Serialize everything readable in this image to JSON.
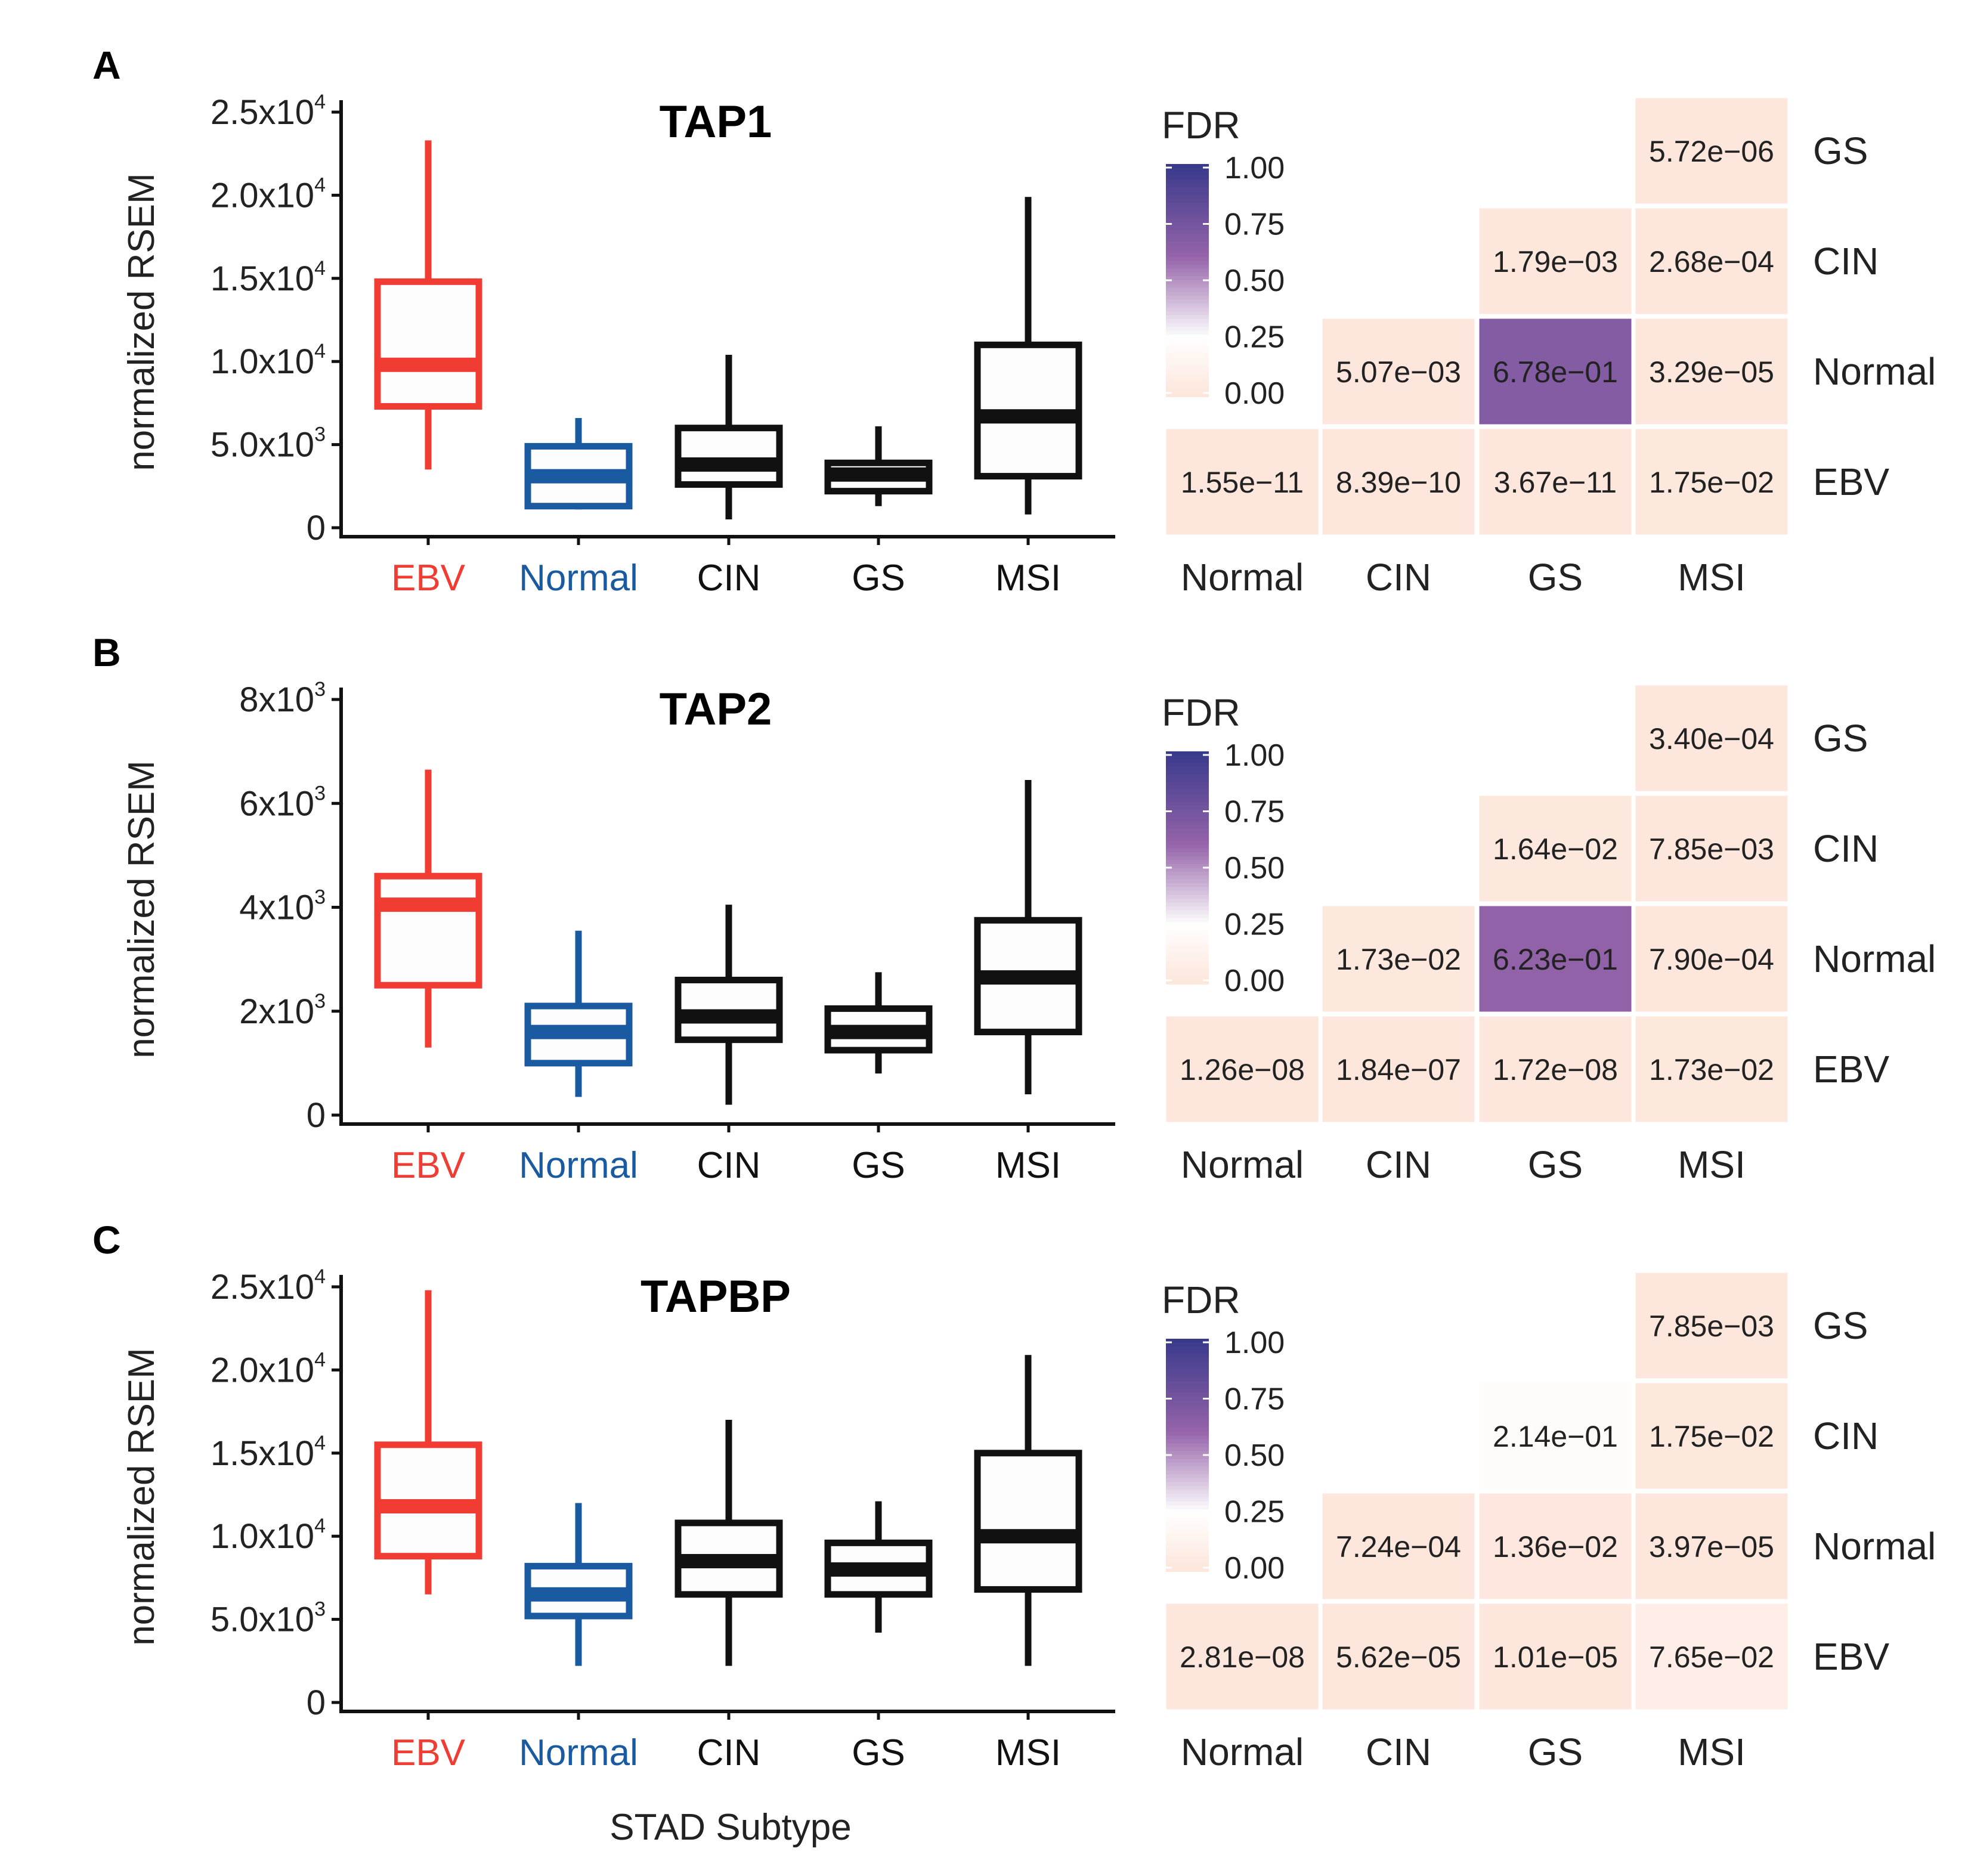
{
  "figure": {
    "xlabel": "STAD Subtype",
    "legend_title": "FDR",
    "legend_ticks": [
      "1.00",
      "0.75",
      "0.50",
      "0.25",
      "0.00"
    ],
    "colors": {
      "EBV": "#f03c32",
      "Normal": "#1a5aa0",
      "CIN": "#111111",
      "GS": "#111111",
      "MSI": "#111111",
      "heat_low": "#fde6dc",
      "heat_mid": "#ffffff",
      "heat_high": "#3a3a8c"
    }
  },
  "chart_data": [
    {
      "panel": "A",
      "type": "box",
      "title": "TAP1",
      "ylabel": "normalized RSEM",
      "ylim": [
        0,
        25000
      ],
      "yticks": [
        {
          "value": 0,
          "base": "0",
          "exp": ""
        },
        {
          "value": 5000,
          "base": "5.0x10",
          "exp": "3"
        },
        {
          "value": 10000,
          "base": "1.0x10",
          "exp": "4"
        },
        {
          "value": 15000,
          "base": "1.5x10",
          "exp": "4"
        },
        {
          "value": 20000,
          "base": "2.0x10",
          "exp": "4"
        },
        {
          "value": 25000,
          "base": "2.5x10",
          "exp": "4"
        }
      ],
      "categories": [
        "EBV",
        "Normal",
        "CIN",
        "GS",
        "MSI"
      ],
      "boxes": [
        {
          "name": "EBV",
          "whisker_low": 3500,
          "q1": 7300,
          "median": 9800,
          "q3": 14800,
          "whisker_high": 23300
        },
        {
          "name": "Normal",
          "whisker_low": 1100,
          "q1": 1300,
          "median": 3100,
          "q3": 4900,
          "whisker_high": 6600
        },
        {
          "name": "CIN",
          "whisker_low": 500,
          "q1": 2600,
          "median": 3800,
          "q3": 6000,
          "whisker_high": 10400
        },
        {
          "name": "GS",
          "whisker_low": 1300,
          "q1": 2200,
          "median": 3200,
          "q3": 3900,
          "whisker_high": 6100
        },
        {
          "name": "MSI",
          "whisker_low": 800,
          "q1": 3100,
          "median": 6700,
          "q3": 11000,
          "whisker_high": 19900
        }
      ],
      "heatmap": {
        "columns": [
          "Normal",
          "CIN",
          "GS",
          "MSI"
        ],
        "rows": [
          "GS",
          "CIN",
          "Normal",
          "EBV"
        ],
        "cells": [
          {
            "row": "GS",
            "col": "MSI",
            "label": "5.72e−06",
            "value": 5.7e-06
          },
          {
            "row": "CIN",
            "col": "GS",
            "label": "1.79e−03",
            "value": 0.0018
          },
          {
            "row": "CIN",
            "col": "MSI",
            "label": "2.68e−04",
            "value": 0.00027
          },
          {
            "row": "Normal",
            "col": "CIN",
            "label": "5.07e−03",
            "value": 0.0051
          },
          {
            "row": "Normal",
            "col": "GS",
            "label": "6.78e−01",
            "value": 0.678
          },
          {
            "row": "Normal",
            "col": "MSI",
            "label": "3.29e−05",
            "value": 3.3e-05
          },
          {
            "row": "EBV",
            "col": "Normal",
            "label": "1.55e−11",
            "value": 1.55e-11
          },
          {
            "row": "EBV",
            "col": "CIN",
            "label": "8.39e−10",
            "value": 8.39e-10
          },
          {
            "row": "EBV",
            "col": "GS",
            "label": "3.67e−11",
            "value": 3.67e-11
          },
          {
            "row": "EBV",
            "col": "MSI",
            "label": "1.75e−02",
            "value": 0.0175
          }
        ]
      }
    },
    {
      "panel": "B",
      "type": "box",
      "title": "TAP2",
      "ylabel": "normalized RSEM",
      "ylim": [
        0,
        8000
      ],
      "yticks": [
        {
          "value": 0,
          "base": "0",
          "exp": ""
        },
        {
          "value": 2000,
          "base": "2x10",
          "exp": "3"
        },
        {
          "value": 4000,
          "base": "4x10",
          "exp": "3"
        },
        {
          "value": 6000,
          "base": "6x10",
          "exp": "3"
        },
        {
          "value": 8000,
          "base": "8x10",
          "exp": "3"
        }
      ],
      "categories": [
        "EBV",
        "Normal",
        "CIN",
        "GS",
        "MSI"
      ],
      "boxes": [
        {
          "name": "EBV",
          "whisker_low": 1300,
          "q1": 2500,
          "median": 4050,
          "q3": 4600,
          "whisker_high": 6650
        },
        {
          "name": "Normal",
          "whisker_low": 350,
          "q1": 1000,
          "median": 1600,
          "q3": 2100,
          "whisker_high": 3550
        },
        {
          "name": "CIN",
          "whisker_low": 200,
          "q1": 1450,
          "median": 1900,
          "q3": 2600,
          "whisker_high": 4050
        },
        {
          "name": "GS",
          "whisker_low": 800,
          "q1": 1250,
          "median": 1600,
          "q3": 2050,
          "whisker_high": 2750
        },
        {
          "name": "MSI",
          "whisker_low": 400,
          "q1": 1600,
          "median": 2650,
          "q3": 3750,
          "whisker_high": 6450
        }
      ],
      "heatmap": {
        "columns": [
          "Normal",
          "CIN",
          "GS",
          "MSI"
        ],
        "rows": [
          "GS",
          "CIN",
          "Normal",
          "EBV"
        ],
        "cells": [
          {
            "row": "GS",
            "col": "MSI",
            "label": "3.40e−04",
            "value": 0.00034
          },
          {
            "row": "CIN",
            "col": "GS",
            "label": "1.64e−02",
            "value": 0.0164
          },
          {
            "row": "CIN",
            "col": "MSI",
            "label": "7.85e−03",
            "value": 0.00785
          },
          {
            "row": "Normal",
            "col": "CIN",
            "label": "1.73e−02",
            "value": 0.0173
          },
          {
            "row": "Normal",
            "col": "GS",
            "label": "6.23e−01",
            "value": 0.623
          },
          {
            "row": "Normal",
            "col": "MSI",
            "label": "7.90e−04",
            "value": 0.00079
          },
          {
            "row": "EBV",
            "col": "Normal",
            "label": "1.26e−08",
            "value": 1.26e-08
          },
          {
            "row": "EBV",
            "col": "CIN",
            "label": "1.84e−07",
            "value": 1.84e-07
          },
          {
            "row": "EBV",
            "col": "GS",
            "label": "1.72e−08",
            "value": 1.72e-08
          },
          {
            "row": "EBV",
            "col": "MSI",
            "label": "1.73e−02",
            "value": 0.0173
          }
        ]
      }
    },
    {
      "panel": "C",
      "type": "box",
      "title": "TAPBP",
      "ylabel": "normalized RSEM",
      "ylim": [
        0,
        25000
      ],
      "yticks": [
        {
          "value": 0,
          "base": "0",
          "exp": ""
        },
        {
          "value": 5000,
          "base": "5.0x10",
          "exp": "3"
        },
        {
          "value": 10000,
          "base": "1.0x10",
          "exp": "4"
        },
        {
          "value": 15000,
          "base": "1.5x10",
          "exp": "4"
        },
        {
          "value": 20000,
          "base": "2.0x10",
          "exp": "4"
        },
        {
          "value": 25000,
          "base": "2.5x10",
          "exp": "4"
        }
      ],
      "categories": [
        "EBV",
        "Normal",
        "CIN",
        "GS",
        "MSI"
      ],
      "boxes": [
        {
          "name": "EBV",
          "whisker_low": 6500,
          "q1": 8800,
          "median": 11800,
          "q3": 15500,
          "whisker_high": 24800
        },
        {
          "name": "Normal",
          "whisker_low": 2200,
          "q1": 5200,
          "median": 6500,
          "q3": 8200,
          "whisker_high": 12000
        },
        {
          "name": "CIN",
          "whisker_low": 2200,
          "q1": 6500,
          "median": 8500,
          "q3": 10800,
          "whisker_high": 17000
        },
        {
          "name": "GS",
          "whisker_low": 4200,
          "q1": 6500,
          "median": 8000,
          "q3": 9600,
          "whisker_high": 12100
        },
        {
          "name": "MSI",
          "whisker_low": 2200,
          "q1": 6800,
          "median": 10000,
          "q3": 15000,
          "whisker_high": 20900
        }
      ],
      "heatmap": {
        "columns": [
          "Normal",
          "CIN",
          "GS",
          "MSI"
        ],
        "rows": [
          "GS",
          "CIN",
          "Normal",
          "EBV"
        ],
        "cells": [
          {
            "row": "GS",
            "col": "MSI",
            "label": "7.85e−03",
            "value": 0.00785
          },
          {
            "row": "CIN",
            "col": "GS",
            "label": "2.14e−01",
            "value": 0.214
          },
          {
            "row": "CIN",
            "col": "MSI",
            "label": "1.75e−02",
            "value": 0.0175
          },
          {
            "row": "Normal",
            "col": "CIN",
            "label": "7.24e−04",
            "value": 0.000724
          },
          {
            "row": "Normal",
            "col": "GS",
            "label": "1.36e−02",
            "value": 0.0136
          },
          {
            "row": "Normal",
            "col": "MSI",
            "label": "3.97e−05",
            "value": 3.97e-05
          },
          {
            "row": "EBV",
            "col": "Normal",
            "label": "2.81e−08",
            "value": 2.81e-08
          },
          {
            "row": "EBV",
            "col": "CIN",
            "label": "5.62e−05",
            "value": 5.62e-05
          },
          {
            "row": "EBV",
            "col": "GS",
            "label": "1.01e−05",
            "value": 1.01e-05
          },
          {
            "row": "EBV",
            "col": "MSI",
            "label": "7.65e−02",
            "value": 0.0765
          }
        ]
      }
    }
  ]
}
